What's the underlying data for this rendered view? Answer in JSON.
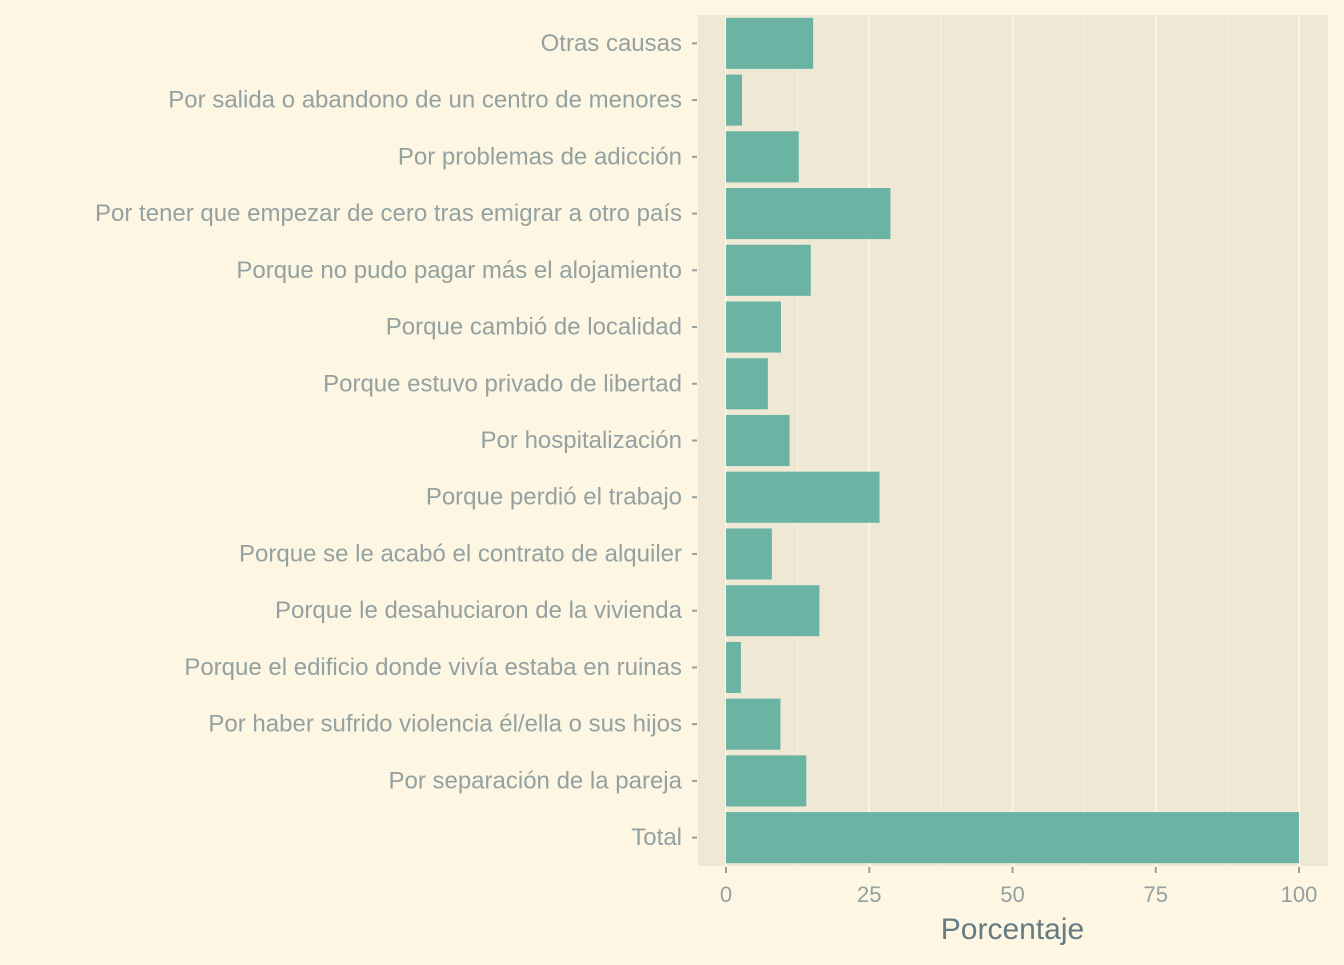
{
  "chart_data": {
    "type": "bar",
    "orientation": "horizontal",
    "title": "",
    "xlabel": "Porcentaje",
    "ylabel": "",
    "xlim": [
      0,
      100
    ],
    "x_ticks": [
      0,
      25,
      50,
      75,
      100
    ],
    "grid": true,
    "legend": "none",
    "categories": [
      "Otras causas",
      "Por salida o abandono de un centro de menores",
      "Por problemas de adicción",
      "Por tener que empezar de cero tras emigrar a otro país",
      "Porque no pudo pagar más el alojamiento",
      "Porque cambió de localidad",
      "Porque estuvo privado de libertad",
      "Por hospitalización",
      "Porque perdió el trabajo",
      "Porque se le acabó el contrato de alquiler",
      "Porque le desahuciaron de la vivienda",
      "Porque el edificio donde vivía estaba en ruinas",
      "Por haber sufrido violencia él/ella o sus hijos",
      "Por separación de la pareja",
      "Total"
    ],
    "values": [
      15.2,
      2.8,
      12.7,
      28.7,
      14.8,
      9.6,
      7.3,
      11.1,
      26.8,
      8.0,
      16.3,
      2.6,
      9.5,
      14.0,
      100
    ]
  },
  "colors": {
    "background": "#fdf6e3",
    "panel": "#eee8d5",
    "grid_major": "#fdf6e3",
    "bar": "#6bb3a3",
    "tick_label": "#93a1a1",
    "axis_title": "#657b83"
  }
}
